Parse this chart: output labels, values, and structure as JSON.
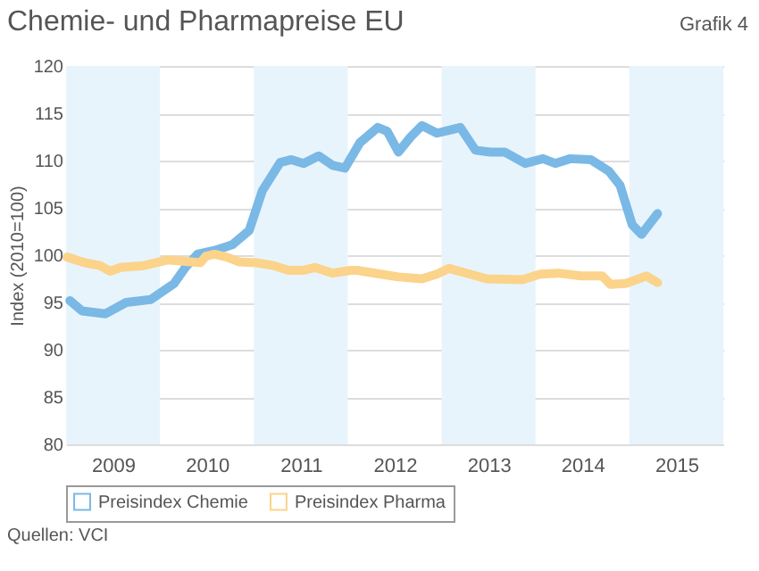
{
  "chart_data": {
    "type": "line",
    "title": "Chemie- und Pharmapreise EU",
    "ylabel": "Index (2010=100)",
    "annotations": [
      "Grafik 4",
      "Quellen: VCI"
    ],
    "x": [
      2009.04,
      2009.17,
      2009.42,
      2009.64,
      2009.9,
      2010.15,
      2010.27,
      2010.4,
      2010.58,
      2010.77,
      2010.95,
      2011.09,
      2011.28,
      2011.4,
      2011.53,
      2011.69,
      2011.84,
      2011.97,
      2012.13,
      2012.32,
      2012.42,
      2012.54,
      2012.67,
      2012.79,
      2012.95,
      2013.2,
      2013.36,
      2013.52,
      2013.67,
      2013.89,
      2014.08,
      2014.21,
      2014.37,
      2014.59,
      2014.78,
      2014.9,
      2015.03,
      2015.13,
      2015.3
    ],
    "series": [
      {
        "name": "Preisindex Chemie",
        "color": "#7ab8e6",
        "values": [
          95.2,
          94.1,
          93.8,
          95.0,
          95.3,
          97.0,
          98.7,
          100.1,
          100.5,
          101.1,
          102.6,
          106.8,
          109.8,
          110.1,
          109.7,
          110.5,
          109.5,
          109.2,
          111.9,
          113.5,
          113.1,
          110.9,
          112.5,
          113.7,
          112.9,
          113.5,
          111.1,
          110.9,
          110.9,
          109.7,
          110.2,
          109.7,
          110.2,
          110.1,
          108.9,
          107.4,
          103.2,
          102.2,
          104.4
        ]
      },
      {
        "name": "Preisindex Pharma",
        "color": "#fbd38a",
        "x": [
          2009.01,
          2009.2,
          2009.36,
          2009.47,
          2009.58,
          2009.83,
          2010.08,
          2010.33,
          2010.43,
          2010.49,
          2010.58,
          2010.71,
          2010.84,
          2011.03,
          2011.21,
          2011.37,
          2011.53,
          2011.65,
          2011.84,
          2012.03,
          2012.1,
          2012.35,
          2012.54,
          2012.79,
          2012.95,
          2013.08,
          2013.3,
          2013.48,
          2013.86,
          2014.05,
          2014.24,
          2014.49,
          2014.71,
          2014.8,
          2014.96,
          2015.18,
          2015.3
        ],
        "values": [
          99.8,
          99.2,
          98.9,
          98.3,
          98.7,
          98.9,
          99.5,
          99.3,
          99.2,
          99.9,
          100.1,
          99.8,
          99.3,
          99.2,
          98.9,
          98.4,
          98.4,
          98.7,
          98.1,
          98.4,
          98.4,
          98.0,
          97.7,
          97.5,
          98.0,
          98.6,
          98.0,
          97.5,
          97.4,
          98.0,
          98.1,
          97.8,
          97.8,
          96.9,
          97.0,
          97.8,
          97.1
        ]
      }
    ],
    "xlim": [
      2009,
      2016
    ],
    "xticks": [
      {
        "value": 2009.5,
        "label": "2009"
      },
      {
        "value": 2010.5,
        "label": "2010"
      },
      {
        "value": 2011.5,
        "label": "2011"
      },
      {
        "value": 2012.5,
        "label": "2012"
      },
      {
        "value": 2013.5,
        "label": "2013"
      },
      {
        "value": 2014.5,
        "label": "2014"
      },
      {
        "value": 2015.5,
        "label": "2015"
      }
    ],
    "ylim": [
      80,
      120
    ],
    "yticks": [
      80,
      85,
      90,
      95,
      100,
      105,
      110,
      115,
      120
    ],
    "bands": [
      {
        "axis": "x",
        "from": 2009,
        "to": 2010,
        "color": "#e8f4fc"
      },
      {
        "axis": "x",
        "from": 2011,
        "to": 2012,
        "color": "#e8f4fc"
      },
      {
        "axis": "x",
        "from": 2013,
        "to": 2014,
        "color": "#e8f4fc"
      },
      {
        "axis": "x",
        "from": 2015,
        "to": 2016,
        "color": "#e8f4fc"
      }
    ],
    "grid": "y",
    "legend": "bottom",
    "line_style": "solid"
  }
}
